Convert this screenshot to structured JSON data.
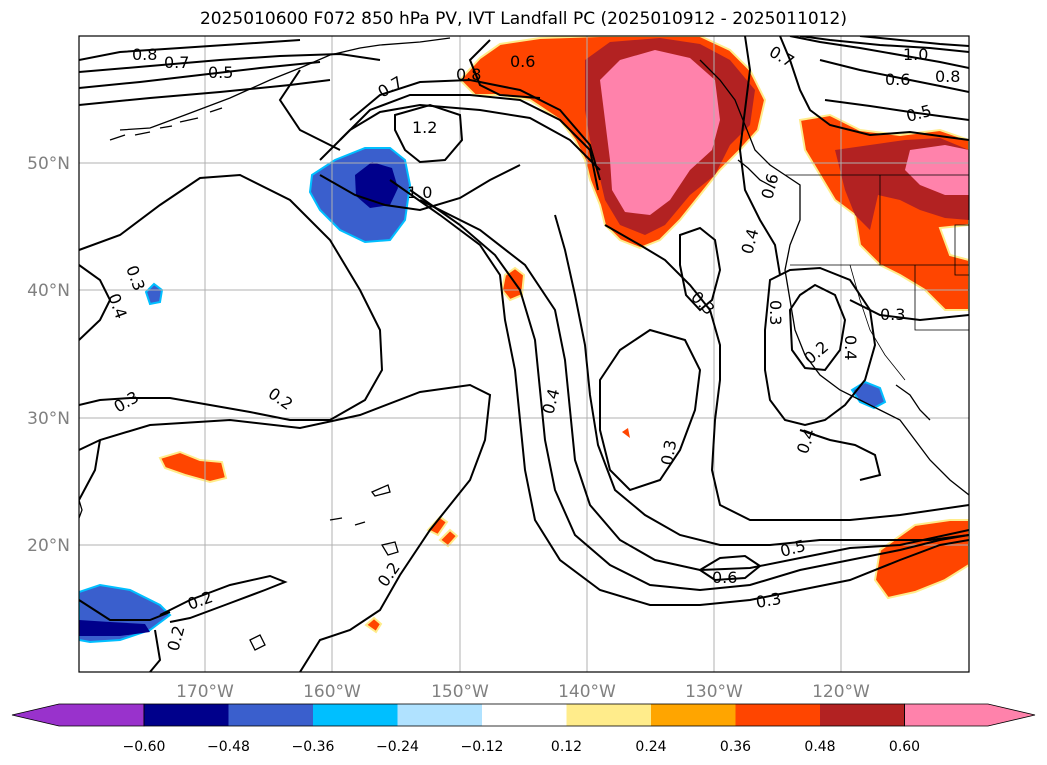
{
  "title": "2025010600 F072 850 hPa PV, IVT Landfall PC (2025010912 - 2025011012)",
  "map": {
    "lon_labels": [
      "170°W",
      "160°W",
      "150°W",
      "140°W",
      "130°W",
      "120°W"
    ],
    "lat_labels": [
      "50°N",
      "40°N",
      "30°N",
      "20°N"
    ],
    "contour_labels": [
      "0.8",
      "0.7",
      "0.5",
      "0.7",
      "0.8",
      "0.6",
      "1.2",
      "1.0",
      "0.7",
      "1.0",
      "0.6",
      "0.8",
      "0.5",
      "0.6",
      "0.4",
      "0.3",
      "0.4",
      "0.3",
      "0.3",
      "0.2",
      "0.2",
      "0.4",
      "0.3",
      "0.4",
      "0.3",
      "0.3",
      "0.4",
      "0.5",
      "0.6",
      "0.3",
      "0.2",
      "0.2",
      "0.2"
    ]
  },
  "colorbar": {
    "colors": [
      "#9932cc",
      "#00008b",
      "#3a5fcd",
      "#00bfff",
      "#b0e2ff",
      "#ffffff",
      "#ffec8b",
      "#ffa500",
      "#ff4500",
      "#b22222",
      "#ff82ab"
    ],
    "ticks": [
      "−0.60",
      "−0.48",
      "−0.36",
      "−0.24",
      "−0.12",
      "0.12",
      "0.24",
      "0.36",
      "0.48",
      "0.60"
    ]
  }
}
